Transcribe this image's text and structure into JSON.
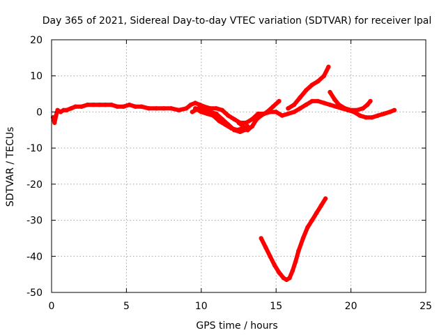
{
  "chart_data": {
    "type": "scatter",
    "title": "Day 365 of 2021, Sidereal Day-to-day VTEC variation (SDTVAR) for receiver lpal",
    "xlabel": "GPS time / hours",
    "ylabel": "SDTVAR / TECUs",
    "xlim": [
      0,
      25
    ],
    "ylim": [
      -50,
      20
    ],
    "xticks": [
      0,
      5,
      10,
      15,
      20,
      25
    ],
    "yticks": [
      20,
      10,
      0,
      -10,
      -20,
      -30,
      -40,
      -50
    ],
    "grid": true,
    "legend": "none",
    "series_color": "#ff0000",
    "series": [
      {
        "name": "arc-1",
        "x": [
          0.1,
          0.2,
          0.3,
          0.4,
          0.6,
          0.8,
          1.0,
          1.3,
          1.6,
          2.0,
          2.4,
          2.8,
          3.2,
          3.6,
          4.0,
          4.4,
          4.8,
          5.2,
          5.6,
          6.0,
          6.5,
          7.0,
          7.5,
          8.0,
          8.5,
          9.0,
          9.3,
          9.6,
          9.9,
          10.2,
          10.6,
          11.0,
          11.4,
          11.8,
          12.2,
          12.6,
          13.0,
          13.4,
          13.8,
          14.2,
          14.6,
          15.0,
          15.4,
          15.8,
          16.2,
          16.6,
          17.0,
          17.4,
          17.8,
          18.2,
          18.6,
          19.0,
          19.4,
          19.8,
          20.2,
          20.6,
          21.0,
          21.4,
          21.8,
          22.2,
          22.6,
          22.9
        ],
        "y": [
          -1.5,
          -3,
          -1,
          0.5,
          0,
          0.5,
          0.5,
          1,
          1.5,
          1.5,
          2,
          2,
          2,
          2,
          2,
          1.5,
          1.5,
          2,
          1.5,
          1.5,
          1,
          1,
          1,
          1,
          0.5,
          1,
          2,
          2.5,
          2,
          1.5,
          1,
          1,
          0.5,
          -1,
          -2,
          -3,
          -3,
          -2,
          -0.5,
          -0.5,
          0,
          0,
          -1,
          -0.5,
          0,
          1,
          2,
          3,
          3,
          2.5,
          2,
          1.5,
          1,
          0.5,
          0,
          -1,
          -1.5,
          -1.5,
          -1,
          -0.5,
          0,
          0.5
        ]
      },
      {
        "name": "arc-2",
        "x": [
          9.4,
          9.8,
          10.2,
          10.6,
          11.0,
          11.4,
          11.8,
          12.2,
          12.6,
          12.9
        ],
        "y": [
          0,
          1,
          1,
          0,
          -0.5,
          -2,
          -3.5,
          -5,
          -5.5,
          -5
        ]
      },
      {
        "name": "arc-3",
        "x": [
          9.6,
          10.0,
          10.4,
          10.8,
          11.2,
          11.6,
          12.0,
          12.4,
          12.8,
          13.1
        ],
        "y": [
          1,
          0,
          -0.5,
          -1,
          -2.5,
          -3.5,
          -4.5,
          -5,
          -4.5,
          -4
        ]
      },
      {
        "name": "arc-4",
        "x": [
          12.5,
          12.8,
          13.1,
          13.4,
          13.7,
          14.0,
          14.4,
          14.8,
          15.2
        ],
        "y": [
          -3,
          -4,
          -5,
          -4,
          -2,
          -1,
          0,
          1.5,
          3
        ]
      },
      {
        "name": "arc-5",
        "x": [
          15.8,
          16.2,
          16.6,
          17.0,
          17.4,
          17.8,
          18.2,
          18.5
        ],
        "y": [
          1,
          2,
          4,
          6,
          7.5,
          8.5,
          10,
          12.5
        ]
      },
      {
        "name": "arc-6",
        "x": [
          18.6,
          18.9,
          19.2,
          19.6,
          20.0,
          20.4,
          20.8,
          21.1,
          21.3
        ],
        "y": [
          5.5,
          3.5,
          2,
          1,
          0.5,
          0.5,
          1,
          2,
          3
        ]
      },
      {
        "name": "arc-7",
        "x": [
          14.0,
          14.3,
          14.6,
          14.9,
          15.2,
          15.5,
          15.7,
          15.9,
          16.1,
          16.3,
          16.5,
          16.8,
          17.1,
          17.4,
          17.7,
          18.0,
          18.3
        ],
        "y": [
          -35,
          -37.5,
          -40,
          -42.5,
          -44.5,
          -46,
          -46.5,
          -46,
          -44,
          -41.5,
          -38.5,
          -35,
          -32,
          -30,
          -28,
          -26,
          -24
        ]
      }
    ]
  }
}
